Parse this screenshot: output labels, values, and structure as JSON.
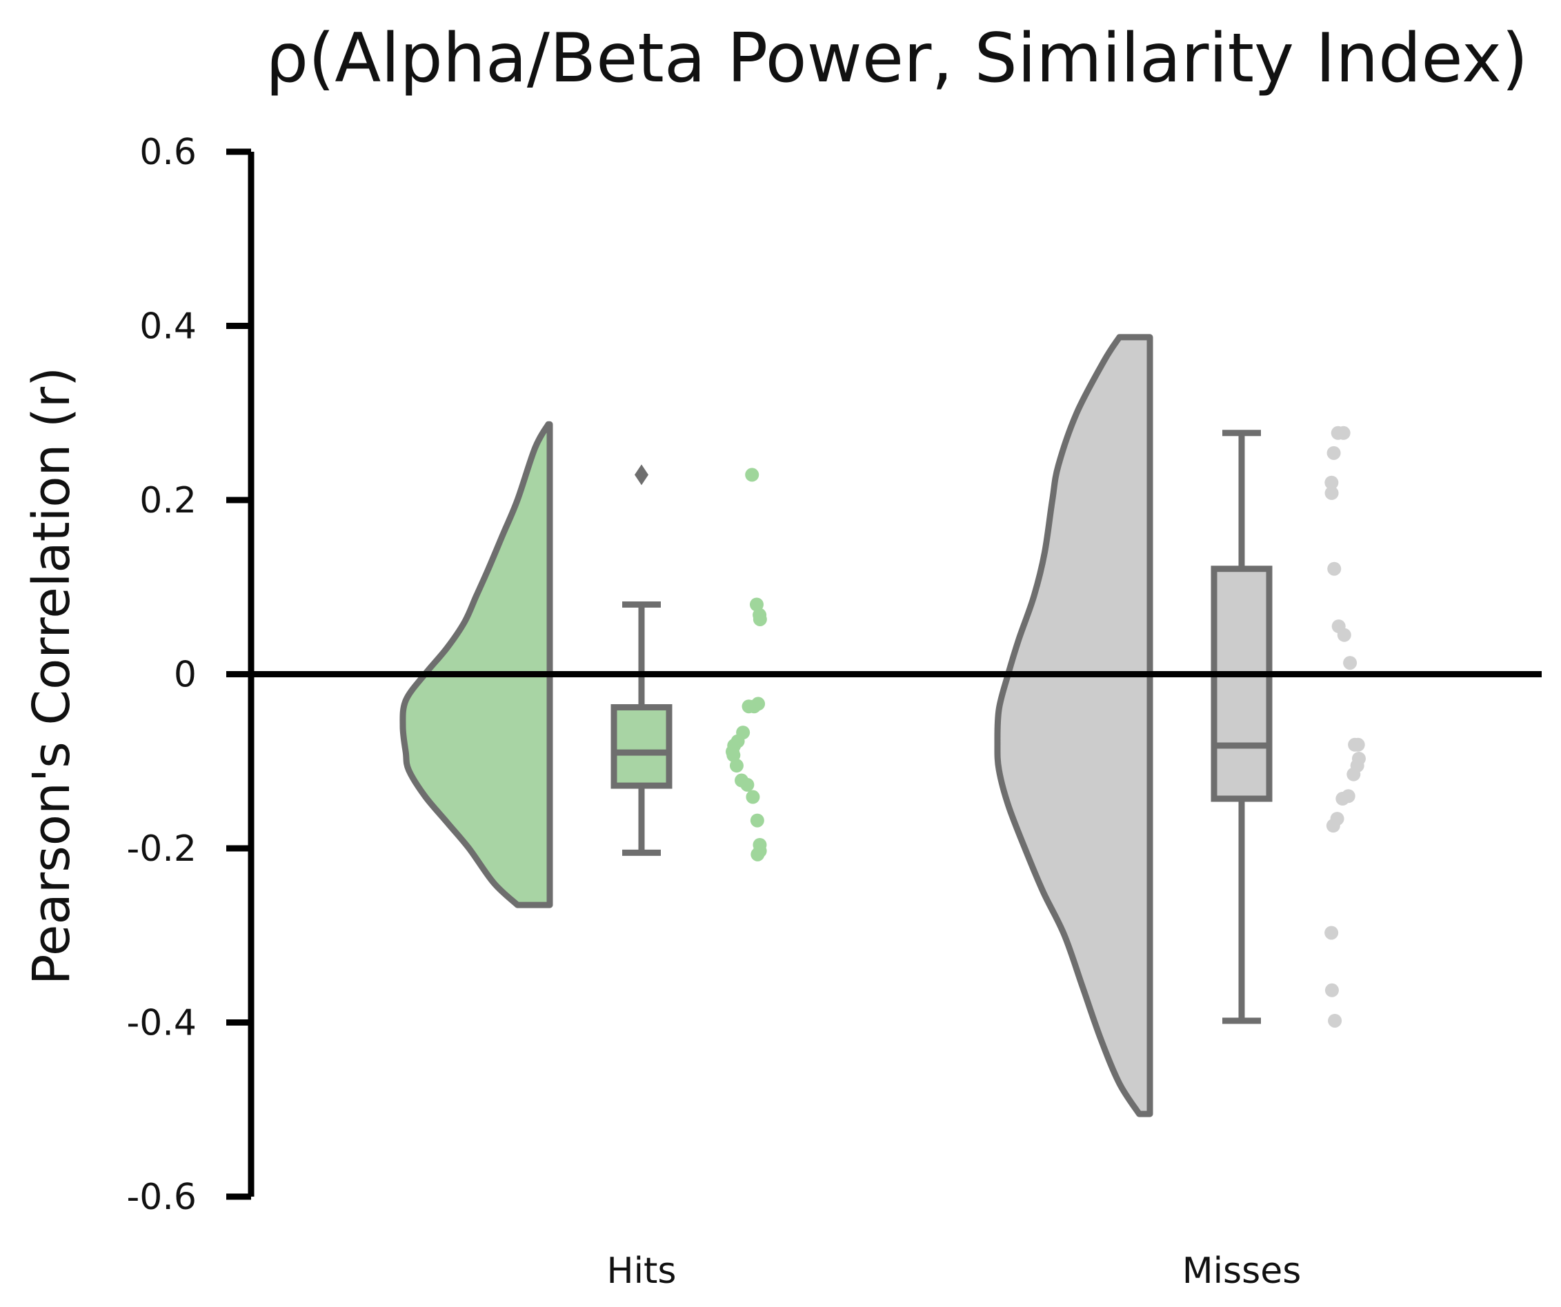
{
  "chart_data": {
    "type": "raincloud",
    "title": "ρ(Alpha/Beta Power, Similarity Index)",
    "xlabel": "",
    "ylabel": "Pearson's Correlation (r)",
    "ylim": [
      -0.6,
      0.6
    ],
    "yticks": [
      0.6,
      0.4,
      0.2,
      0,
      -0.2,
      -0.4,
      -0.6
    ],
    "ytick_labels": [
      "0.6",
      "0.4",
      "0.2",
      "0",
      "-0.2",
      "-0.4",
      "-0.6"
    ],
    "reference_line_y": 0,
    "grid": false,
    "categories": [
      "Hits",
      "Misses"
    ],
    "series": [
      {
        "category": "Hits",
        "fill_color": "#a8d4a4",
        "point_color": "#9fd69b",
        "outline_color": "#6e6e6e",
        "box": {
          "whisker_low": -0.205,
          "q1": -0.128,
          "median": -0.09,
          "q3": -0.038,
          "whisker_high": 0.08
        },
        "outliers": [
          0.229
        ],
        "points": [
          0.229,
          0.08,
          0.068,
          0.063,
          -0.034,
          -0.037,
          -0.037,
          -0.067,
          -0.077,
          -0.082,
          -0.089,
          -0.093,
          -0.105,
          -0.122,
          -0.127,
          -0.141,
          -0.168,
          -0.196,
          -0.203,
          -0.207
        ],
        "density": {
          "y": [
            0.287,
            0.26,
            0.2,
            0.16,
            0.12,
            0.09,
            0.06,
            0.03,
            0.0,
            -0.03,
            -0.06,
            -0.09,
            -0.11,
            -0.14,
            -0.17,
            -0.2,
            -0.24,
            -0.265
          ],
          "width": [
            0.01,
            0.1,
            0.22,
            0.32,
            0.42,
            0.5,
            0.58,
            0.7,
            0.85,
            0.98,
            1.0,
            0.98,
            0.96,
            0.85,
            0.7,
            0.55,
            0.38,
            0.22
          ]
        }
      },
      {
        "category": "Misses",
        "fill_color": "#cccccc",
        "point_color": "#d0d0d0",
        "outline_color": "#6e6e6e",
        "box": {
          "whisker_low": -0.398,
          "q1": -0.143,
          "median": -0.082,
          "q3": 0.121,
          "whisker_high": 0.277
        },
        "outliers": [],
        "points": [
          0.277,
          0.277,
          0.254,
          0.22,
          0.208,
          0.121,
          0.055,
          0.045,
          0.013,
          -0.081,
          -0.081,
          -0.097,
          -0.105,
          -0.115,
          -0.14,
          -0.143,
          -0.166,
          -0.174,
          -0.297,
          -0.363,
          -0.398
        ],
        "density": {
          "y": [
            0.387,
            0.36,
            0.3,
            0.24,
            0.2,
            0.14,
            0.09,
            0.04,
            0.0,
            -0.04,
            -0.08,
            -0.11,
            -0.15,
            -0.2,
            -0.25,
            -0.3,
            -0.36,
            -0.42,
            -0.47,
            -0.505
          ],
          "width": [
            0.2,
            0.3,
            0.48,
            0.6,
            0.64,
            0.69,
            0.76,
            0.86,
            0.93,
            0.99,
            1.0,
            0.99,
            0.93,
            0.82,
            0.7,
            0.56,
            0.44,
            0.32,
            0.2,
            0.07
          ]
        }
      }
    ]
  },
  "colors": {
    "hits_fill": "#a8d4a4",
    "misses_fill": "#cccccc",
    "outline": "#6e6e6e",
    "axis": "#000000"
  }
}
